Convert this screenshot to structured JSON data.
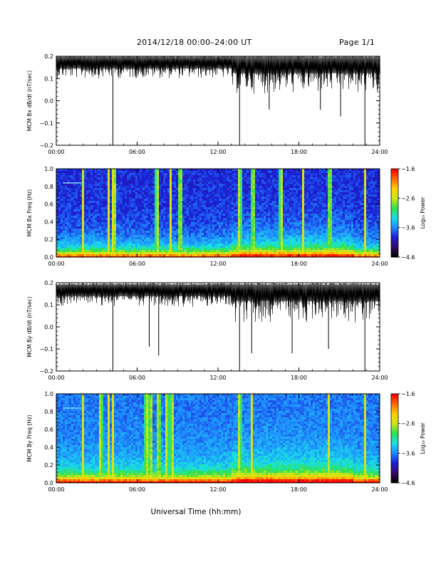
{
  "header": {
    "title": "2014/12/18   00:00–24:00 UT",
    "page": "Page 1/1"
  },
  "x_axis_label": "Universal Time (hh:mm)",
  "colors": {
    "trace": "#000000",
    "colormap": [
      "#000000",
      "#3a0a6e",
      "#1b1ed6",
      "#1f8cff",
      "#18e0e6",
      "#30e04a",
      "#c8e81c",
      "#ffd000",
      "#ff6a00",
      "#ff0000"
    ]
  },
  "chart_data": [
    {
      "type": "line",
      "ylabel": "MCM Bx dB/dt (nT/sec)",
      "xlim": [
        0,
        24
      ],
      "ylim": [
        -0.2,
        0.2
      ],
      "yticks": [
        "0.2",
        "0.1",
        "0.0",
        "−0.1",
        "−0.2"
      ],
      "xticks": [
        "00:00",
        "06:00",
        "12:00",
        "18:00",
        "24:00"
      ],
      "x_unit": "hours UT",
      "baseline": 0.165,
      "noise_envelope": [
        {
          "x": [
            0,
            13
          ],
          "low": 0.1
        },
        {
          "x": [
            13,
            24
          ],
          "low": 0.03
        }
      ],
      "spikes": [
        {
          "x": 4.2,
          "y": -0.2
        },
        {
          "x": 13.6,
          "y": -0.2
        },
        {
          "x": 15.8,
          "y": -0.04
        },
        {
          "x": 19.6,
          "y": -0.04
        },
        {
          "x": 21.1,
          "y": -0.07
        },
        {
          "x": 22.9,
          "y": -0.2
        }
      ]
    },
    {
      "type": "heatmap",
      "ylabel": "MCM Bx Freq (Hz)",
      "xlim": [
        0,
        24
      ],
      "ylim": [
        0,
        1.0
      ],
      "yticks": [
        "1.0",
        "0.8",
        "0.6",
        "0.4",
        "0.2",
        "0.0"
      ],
      "xticks": [
        "00:00",
        "06:00",
        "12:00",
        "18:00",
        "24:00"
      ],
      "colorbar": {
        "label": "Log₁₀ Power",
        "range": [
          -4.6,
          -1.6
        ],
        "ticks": [
          "−1.6",
          "−2.6",
          "−3.6",
          "−4.6"
        ]
      },
      "broadband_bursts_hours": [
        2.0,
        3.9,
        4.2,
        4.3,
        7.5,
        8.5,
        9.2,
        13.6,
        14.6,
        16.7,
        18.3,
        20.3,
        22.9
      ],
      "low_freq_enhancement_hours": [
        13,
        22
      ],
      "artifact_line": {
        "x": [
          0.5,
          2.0
        ],
        "freq": 0.84
      }
    },
    {
      "type": "line",
      "ylabel": "MCM By dB/dt (nT/sec)",
      "xlim": [
        0,
        24
      ],
      "ylim": [
        -0.2,
        0.2
      ],
      "yticks": [
        "0.2",
        "0.1",
        "0.0",
        "−0.1",
        "−0.2"
      ],
      "xticks": [
        "00:00",
        "06:00",
        "12:00",
        "18:00",
        "24:00"
      ],
      "x_unit": "hours UT",
      "baseline": 0.16,
      "noise_envelope": [
        {
          "x": [
            0,
            13
          ],
          "low": 0.09
        },
        {
          "x": [
            13,
            24
          ],
          "low": 0.02
        }
      ],
      "spikes": [
        {
          "x": 4.2,
          "y": -0.2
        },
        {
          "x": 6.9,
          "y": -0.09
        },
        {
          "x": 7.6,
          "y": -0.13
        },
        {
          "x": 13.6,
          "y": -0.2
        },
        {
          "x": 14.5,
          "y": -0.12
        },
        {
          "x": 17.5,
          "y": -0.12
        },
        {
          "x": 20.2,
          "y": -0.1
        },
        {
          "x": 22.9,
          "y": -0.2
        }
      ]
    },
    {
      "type": "heatmap",
      "ylabel": "MCM By Freq (Hz)",
      "xlim": [
        0,
        24
      ],
      "ylim": [
        0,
        1.0
      ],
      "yticks": [
        "1.0",
        "0.8",
        "0.6",
        "0.4",
        "0.2",
        "0.0"
      ],
      "xticks": [
        "00:00",
        "06:00",
        "12:00",
        "18:00",
        "24:00"
      ],
      "colorbar": {
        "label": "Log₁₀ Power",
        "range": [
          -4.6,
          -1.6
        ],
        "ticks": [
          "−1.6",
          "−2.6",
          "−3.6",
          "−4.6"
        ]
      },
      "broadband_bursts_hours": [
        2.0,
        3.3,
        3.9,
        4.2,
        6.7,
        7.0,
        7.6,
        8.2,
        8.6,
        13.6,
        14.5,
        20.2,
        22.9
      ],
      "low_freq_enhancement_hours": [
        13,
        22
      ],
      "artifact_line": {
        "x": [
          0.5,
          2.0
        ],
        "freq": 0.84
      }
    }
  ]
}
